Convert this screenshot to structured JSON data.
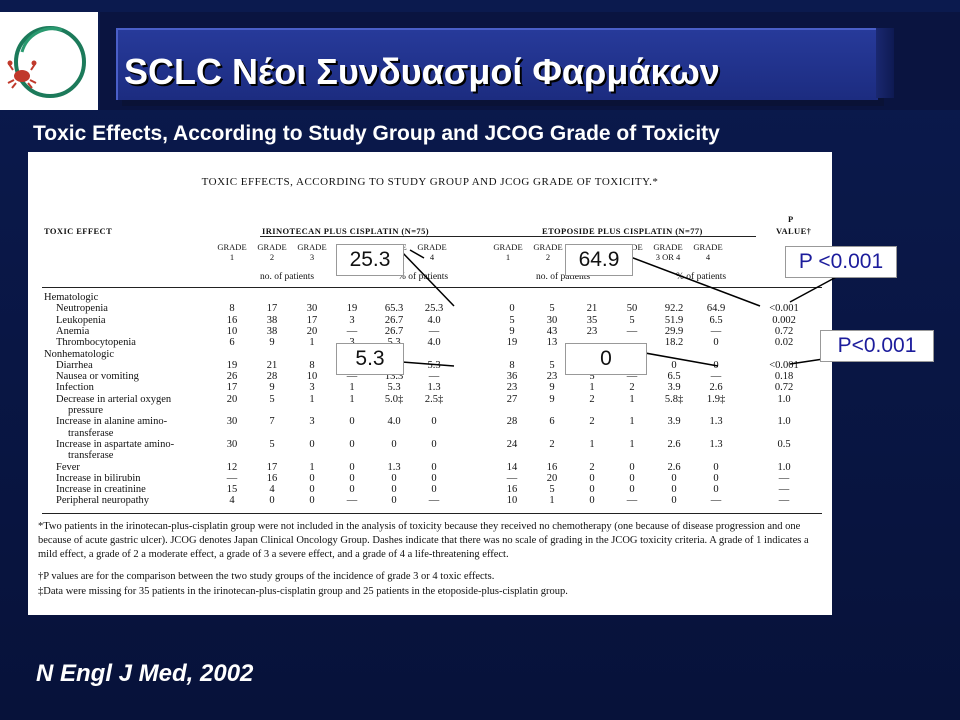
{
  "header": {
    "title": "SCLC Νέοι Συνδυασμοί Φαρμάκων",
    "logo_icon": "crab-cancer-logo-icon"
  },
  "subtitle": "Toxic Effects, According to Study Group and JCOG Grade of Toxicity",
  "table": {
    "caption": "TOXIC EFFECTS, ACCORDING TO STUDY GROUP AND JCOG GRADE OF TOXICITY.*",
    "col_toxic_effect": "TOXIC EFFECT",
    "group_irinotecan": "IRINOTECAN PLUS CISPLATIN (N=75)",
    "group_etoposide": "ETOPOSIDE PLUS CISPLATIN (N=77)",
    "col_p_line1": "P",
    "col_p_line2": "VALUE†",
    "grades_irinotecan": [
      {
        "top": "GRADE",
        "bottom": "1"
      },
      {
        "top": "GRADE",
        "bottom": "2"
      },
      {
        "top": "GRADE",
        "bottom": "3"
      },
      {
        "top": "GRADE",
        "bottom": "4"
      },
      {
        "top": "GRADE",
        "bottom": "3 OR 4"
      },
      {
        "top": "GRADE",
        "bottom": "4"
      }
    ],
    "grades_etoposide": [
      {
        "top": "GRADE",
        "bottom": "1"
      },
      {
        "top": "GRADE",
        "bottom": "2"
      },
      {
        "top": "GRADE",
        "bottom": "3"
      },
      {
        "top": "GRADE",
        "bottom": "4"
      },
      {
        "top": "GRADE",
        "bottom": "3 OR 4"
      },
      {
        "top": "GRADE",
        "bottom": "4"
      }
    ],
    "sub_no_patients": "no. of patients",
    "sub_pct_patients": "% of patients",
    "rows": [
      {
        "label": "Hematologic",
        "indent": 0,
        "cells": []
      },
      {
        "label": "Neutropenia",
        "indent": 1,
        "cells": [
          "8",
          "17",
          "30",
          "19",
          "65.3",
          "25.3",
          "0",
          "5",
          "21",
          "50",
          "92.2",
          "64.9",
          "<0.001"
        ]
      },
      {
        "label": "Leukopenia",
        "indent": 1,
        "cells": [
          "16",
          "38",
          "17",
          "3",
          "26.7",
          "4.0",
          "5",
          "30",
          "35",
          "5",
          "51.9",
          "6.5",
          "0.002"
        ]
      },
      {
        "label": "Anemia",
        "indent": 1,
        "cells": [
          "10",
          "38",
          "20",
          "—",
          "26.7",
          "—",
          "9",
          "43",
          "23",
          "—",
          "29.9",
          "—",
          "0.72"
        ]
      },
      {
        "label": "Thrombocytopenia",
        "indent": 1,
        "cells": [
          "6",
          "9",
          "1",
          "3",
          "5.3",
          "4.0",
          "19",
          "13",
          "",
          "",
          "18.2",
          "0",
          "0.02"
        ]
      },
      {
        "label": "Nonhematologic",
        "indent": 0,
        "cells": []
      },
      {
        "label": "Diarrhea",
        "indent": 1,
        "cells": [
          "19",
          "21",
          "8",
          "",
          "16.0",
          "5.3",
          "8",
          "5",
          "0",
          "0",
          "0",
          "0",
          "<0.001"
        ]
      },
      {
        "label": "Nausea or vomiting",
        "indent": 1,
        "cells": [
          "26",
          "28",
          "10",
          "—",
          "13.3",
          "—",
          "36",
          "23",
          "5",
          "—",
          "6.5",
          "—",
          "0.18"
        ]
      },
      {
        "label": "Infection",
        "indent": 1,
        "cells": [
          "17",
          "9",
          "3",
          "1",
          "5.3",
          "1.3",
          "23",
          "9",
          "1",
          "2",
          "3.9",
          "2.6",
          "0.72"
        ]
      },
      {
        "label": "Decrease in arterial oxygen",
        "indent": 1,
        "cells": [
          "20",
          "5",
          "1",
          "1",
          "5.0‡",
          "2.5‡",
          "27",
          "9",
          "2",
          "1",
          "5.8‡",
          "1.9‡",
          "1.0"
        ]
      },
      {
        "label": "pressure",
        "indent": 2,
        "cells": []
      },
      {
        "label": "Increase in alanine amino-",
        "indent": 1,
        "cells": [
          "30",
          "7",
          "3",
          "0",
          "4.0",
          "0",
          "28",
          "6",
          "2",
          "1",
          "3.9",
          "1.3",
          "1.0"
        ]
      },
      {
        "label": "transferase",
        "indent": 2,
        "cells": []
      },
      {
        "label": "Increase in aspartate amino-",
        "indent": 1,
        "cells": [
          "30",
          "5",
          "0",
          "0",
          "0",
          "0",
          "24",
          "2",
          "1",
          "1",
          "2.6",
          "1.3",
          "0.5"
        ]
      },
      {
        "label": "transferase",
        "indent": 2,
        "cells": []
      },
      {
        "label": "Fever",
        "indent": 1,
        "cells": [
          "12",
          "17",
          "1",
          "0",
          "1.3",
          "0",
          "14",
          "16",
          "2",
          "0",
          "2.6",
          "0",
          "1.0"
        ]
      },
      {
        "label": "Increase in bilirubin",
        "indent": 1,
        "cells": [
          "—",
          "16",
          "0",
          "0",
          "0",
          "0",
          "—",
          "20",
          "0",
          "0",
          "0",
          "0",
          "—"
        ]
      },
      {
        "label": "Increase in creatinine",
        "indent": 1,
        "cells": [
          "15",
          "4",
          "0",
          "0",
          "0",
          "0",
          "16",
          "5",
          "0",
          "0",
          "0",
          "0",
          "—"
        ]
      },
      {
        "label": "Peripheral neuropathy",
        "indent": 1,
        "cells": [
          "4",
          "0",
          "0",
          "—",
          "0",
          "—",
          "10",
          "1",
          "0",
          "—",
          "0",
          "—",
          "—"
        ]
      }
    ],
    "footnotes": [
      "*Two patients in the irinotecan-plus-cisplatin group were not included in the analysis of toxicity because they received no chemotherapy (one because of disease progression and one because of acute gastric ulcer). JCOG denotes Japan Clinical Oncology Group. Dashes indicate that there was no scale of grading in the JCOG toxicity criteria. A grade of 1 indicates a mild effect, a grade of 2 a moderate effect, a grade of 3 a severe effect, and a grade of 4 a life-threatening effect.",
      "†P values are for the comparison between the two study groups of the incidence of grade 3 or 4 toxic effects.",
      "‡Data were missing for 35 patients in the irinotecan-plus-cisplatin group and 25 patients in the etoposide-plus-cisplatin group."
    ]
  },
  "callouts": {
    "irinotecan_grade4_neutropenia": "25.3",
    "etoposide_grade4_neutropenia": "64.9",
    "p_neutropenia": "P <0.001",
    "irinotecan_grade4_diarrhea": "5.3",
    "etoposide_grade4_diarrhea": "0",
    "p_diarrhea": "P<0.001"
  },
  "footer_citation": "N Engl J Med, 2002",
  "colors": {
    "background": "#0b1a4e",
    "title_panel": "#233594",
    "callout_p_text": "#1c1c9c"
  }
}
